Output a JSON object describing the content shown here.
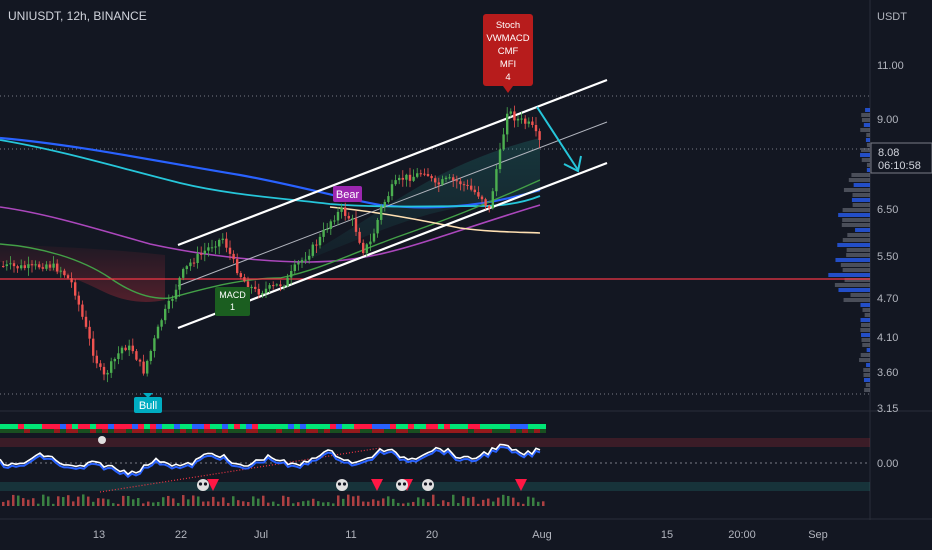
{
  "header": {
    "symbol": "UNIUSDT, 12h, BINANCE"
  },
  "price_axis": {
    "unit": "USDT",
    "ticks": [
      "11.00",
      "9.00",
      "8.08",
      "6.50",
      "5.50",
      "4.70",
      "4.10",
      "3.60",
      "3.15"
    ],
    "current_price": "8.08",
    "countdown": "06:10:58"
  },
  "indicator_axis": {
    "ticks": [
      "0.00"
    ]
  },
  "time_axis": {
    "ticks": [
      "13",
      "22",
      "Jul",
      "11",
      "20",
      "Aug",
      "15",
      "20:00",
      "Sep"
    ]
  },
  "labels": {
    "divergence_top": [
      "Stoch",
      "VWMACD",
      "CMF",
      "MFI",
      "4"
    ],
    "bear": "Bear",
    "bull": "Bull",
    "macd": [
      "MACD",
      "1"
    ]
  },
  "colors": {
    "background": "#131722",
    "up": "#4caf50",
    "down": "#ef5350",
    "support_line": "#f23645",
    "ma_blue": "#2962ff",
    "ma_teal": "#26c6da",
    "ma_purple": "#ab47bc",
    "ma_green": "#43a047",
    "ma_cream": "#ffe0b2",
    "label_red": "#b71c1c",
    "label_purple": "#9c27b0",
    "label_cyan": "#00acc1",
    "label_green": "#1b5e20"
  },
  "chart_data": {
    "type": "candlestick",
    "timeframe": "12h",
    "y_unit": "USDT",
    "ylim": [
      3.15,
      11.5
    ],
    "x_range": [
      "2021-06-05",
      "2021-09-05"
    ],
    "grid": false,
    "ohlc_approx": [
      {
        "date": "2021-06-13",
        "low": 3.6
      },
      {
        "date": "2021-06-19",
        "low": 3.35
      },
      {
        "date": "2021-06-24",
        "close": 5.6
      },
      {
        "date": "2021-07-01",
        "close": 4.9
      },
      {
        "date": "2021-07-10",
        "close": 6.6
      },
      {
        "date": "2021-07-20",
        "close": 7.4
      },
      {
        "date": "2021-07-29",
        "high": 9.9
      },
      {
        "date": "2021-08-01",
        "close": 8.08
      }
    ],
    "horizontal_support": 5.05,
    "channel": "ascending parallel channel",
    "annotations": [
      "Bull",
      "MACD 1",
      "Bear",
      "Stoch VWMACD CMF MFI 4"
    ]
  }
}
